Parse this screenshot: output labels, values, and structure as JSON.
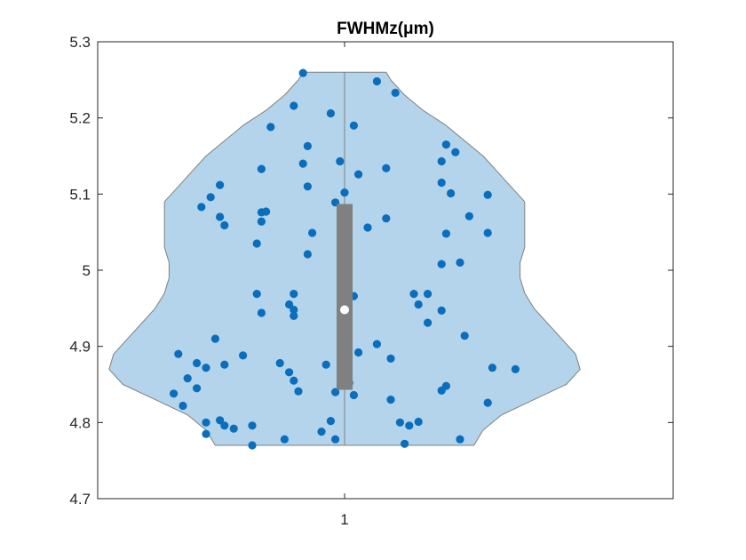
{
  "chart_data": {
    "type": "violin",
    "title": "FWHMz(μm)",
    "xlabel": "",
    "ylabel": "",
    "categories": [
      "1"
    ],
    "ylim": [
      4.7,
      5.3
    ],
    "y_ticks": [
      "4.7",
      "4.8",
      "4.9",
      "5",
      "5.1",
      "5.2",
      "5.3"
    ],
    "y_tick_values": [
      4.7,
      4.8,
      4.9,
      5.0,
      5.1,
      5.2,
      5.3
    ],
    "x_ticks": [
      "1"
    ],
    "grid": false,
    "violin": {
      "min": 4.77,
      "max": 5.26,
      "median": 4.948,
      "q1": 4.843,
      "q3": 5.087,
      "density_profile": [
        {
          "y": 4.77,
          "w": 0.28
        },
        {
          "y": 4.79,
          "w": 0.3
        },
        {
          "y": 4.81,
          "w": 0.34
        },
        {
          "y": 4.83,
          "w": 0.41
        },
        {
          "y": 4.85,
          "w": 0.48
        },
        {
          "y": 4.87,
          "w": 0.51
        },
        {
          "y": 4.89,
          "w": 0.5
        },
        {
          "y": 4.91,
          "w": 0.47
        },
        {
          "y": 4.93,
          "w": 0.44
        },
        {
          "y": 4.95,
          "w": 0.41
        },
        {
          "y": 4.97,
          "w": 0.39
        },
        {
          "y": 4.99,
          "w": 0.38
        },
        {
          "y": 5.01,
          "w": 0.38
        },
        {
          "y": 5.03,
          "w": 0.39
        },
        {
          "y": 5.05,
          "w": 0.39
        },
        {
          "y": 5.07,
          "w": 0.39
        },
        {
          "y": 5.09,
          "w": 0.39
        },
        {
          "y": 5.11,
          "w": 0.36
        },
        {
          "y": 5.13,
          "w": 0.33
        },
        {
          "y": 5.15,
          "w": 0.3
        },
        {
          "y": 5.17,
          "w": 0.26
        },
        {
          "y": 5.19,
          "w": 0.22
        },
        {
          "y": 5.21,
          "w": 0.17
        },
        {
          "y": 5.23,
          "w": 0.13
        },
        {
          "y": 5.25,
          "w": 0.1
        },
        {
          "y": 5.26,
          "w": 0.09
        }
      ],
      "fill_color": "#b3d4eb",
      "edge_color": "#808080",
      "box_color": "#808080",
      "median_color": "#ffffff"
    },
    "points": {
      "color": "#0a6ebd",
      "values": [
        {
          "x": -0.36,
          "y": 4.89
        },
        {
          "x": -0.37,
          "y": 4.838
        },
        {
          "x": -0.35,
          "y": 4.822
        },
        {
          "x": -0.34,
          "y": 4.858
        },
        {
          "x": -0.32,
          "y": 4.878
        },
        {
          "x": -0.32,
          "y": 4.845
        },
        {
          "x": -0.3,
          "y": 4.872
        },
        {
          "x": -0.28,
          "y": 4.91
        },
        {
          "x": -0.26,
          "y": 4.876
        },
        {
          "x": -0.3,
          "y": 4.8
        },
        {
          "x": -0.3,
          "y": 4.785
        },
        {
          "x": -0.27,
          "y": 4.803
        },
        {
          "x": -0.26,
          "y": 4.796
        },
        {
          "x": -0.24,
          "y": 4.792
        },
        {
          "x": -0.22,
          "y": 4.888
        },
        {
          "x": -0.2,
          "y": 4.796
        },
        {
          "x": -0.2,
          "y": 4.77
        },
        {
          "x": -0.31,
          "y": 5.083
        },
        {
          "x": -0.29,
          "y": 5.096
        },
        {
          "x": -0.27,
          "y": 5.112
        },
        {
          "x": -0.27,
          "y": 5.07
        },
        {
          "x": -0.26,
          "y": 5.059
        },
        {
          "x": -0.19,
          "y": 5.035
        },
        {
          "x": -0.18,
          "y": 5.076
        },
        {
          "x": -0.18,
          "y": 5.064
        },
        {
          "x": -0.17,
          "y": 5.077
        },
        {
          "x": -0.18,
          "y": 5.133
        },
        {
          "x": -0.16,
          "y": 5.188
        },
        {
          "x": -0.19,
          "y": 4.969
        },
        {
          "x": -0.18,
          "y": 4.944
        },
        {
          "x": -0.14,
          "y": 4.878
        },
        {
          "x": -0.13,
          "y": 4.778
        },
        {
          "x": -0.12,
          "y": 4.955
        },
        {
          "x": -0.11,
          "y": 4.948
        },
        {
          "x": -0.11,
          "y": 4.94
        },
        {
          "x": -0.11,
          "y": 4.969
        },
        {
          "x": -0.12,
          "y": 4.866
        },
        {
          "x": -0.11,
          "y": 4.855
        },
        {
          "x": -0.1,
          "y": 4.841
        },
        {
          "x": -0.11,
          "y": 5.216
        },
        {
          "x": -0.09,
          "y": 5.14
        },
        {
          "x": -0.08,
          "y": 5.163
        },
        {
          "x": -0.08,
          "y": 5.11
        },
        {
          "x": -0.08,
          "y": 5.021
        },
        {
          "x": -0.07,
          "y": 5.049
        },
        {
          "x": -0.09,
          "y": 5.259
        },
        {
          "x": -0.05,
          "y": 4.788
        },
        {
          "x": -0.04,
          "y": 4.876
        },
        {
          "x": -0.03,
          "y": 4.802
        },
        {
          "x": -0.02,
          "y": 4.778
        },
        {
          "x": -0.02,
          "y": 4.84
        },
        {
          "x": -0.03,
          "y": 5.206
        },
        {
          "x": -0.02,
          "y": 5.089
        },
        {
          "x": -0.01,
          "y": 5.143
        },
        {
          "x": 0.0,
          "y": 5.102
        },
        {
          "x": 0.02,
          "y": 5.19
        },
        {
          "x": 0.02,
          "y": 4.966
        },
        {
          "x": 0.01,
          "y": 4.852
        },
        {
          "x": 0.02,
          "y": 4.836
        },
        {
          "x": 0.03,
          "y": 4.892
        },
        {
          "x": 0.03,
          "y": 5.126
        },
        {
          "x": 0.05,
          "y": 5.056
        },
        {
          "x": 0.07,
          "y": 5.248
        },
        {
          "x": 0.07,
          "y": 4.903
        },
        {
          "x": 0.09,
          "y": 5.134
        },
        {
          "x": 0.09,
          "y": 5.068
        },
        {
          "x": 0.1,
          "y": 4.884
        },
        {
          "x": 0.1,
          "y": 4.83
        },
        {
          "x": 0.11,
          "y": 5.233
        },
        {
          "x": 0.12,
          "y": 4.8
        },
        {
          "x": 0.13,
          "y": 4.772
        },
        {
          "x": 0.14,
          "y": 4.796
        },
        {
          "x": 0.15,
          "y": 4.969
        },
        {
          "x": 0.16,
          "y": 4.955
        },
        {
          "x": 0.16,
          "y": 4.801
        },
        {
          "x": 0.18,
          "y": 4.969
        },
        {
          "x": 0.18,
          "y": 4.931
        },
        {
          "x": 0.21,
          "y": 4.842
        },
        {
          "x": 0.21,
          "y": 4.947
        },
        {
          "x": 0.21,
          "y": 5.008
        },
        {
          "x": 0.22,
          "y": 4.848
        },
        {
          "x": 0.21,
          "y": 5.143
        },
        {
          "x": 0.21,
          "y": 5.115
        },
        {
          "x": 0.22,
          "y": 5.048
        },
        {
          "x": 0.22,
          "y": 5.165
        },
        {
          "x": 0.23,
          "y": 5.101
        },
        {
          "x": 0.24,
          "y": 5.155
        },
        {
          "x": 0.25,
          "y": 5.01
        },
        {
          "x": 0.25,
          "y": 4.778
        },
        {
          "x": 0.26,
          "y": 4.914
        },
        {
          "x": 0.27,
          "y": 5.071
        },
        {
          "x": 0.31,
          "y": 5.099
        },
        {
          "x": 0.31,
          "y": 5.049
        },
        {
          "x": 0.31,
          "y": 4.826
        },
        {
          "x": 0.32,
          "y": 4.872
        },
        {
          "x": 0.37,
          "y": 4.87
        }
      ]
    }
  }
}
